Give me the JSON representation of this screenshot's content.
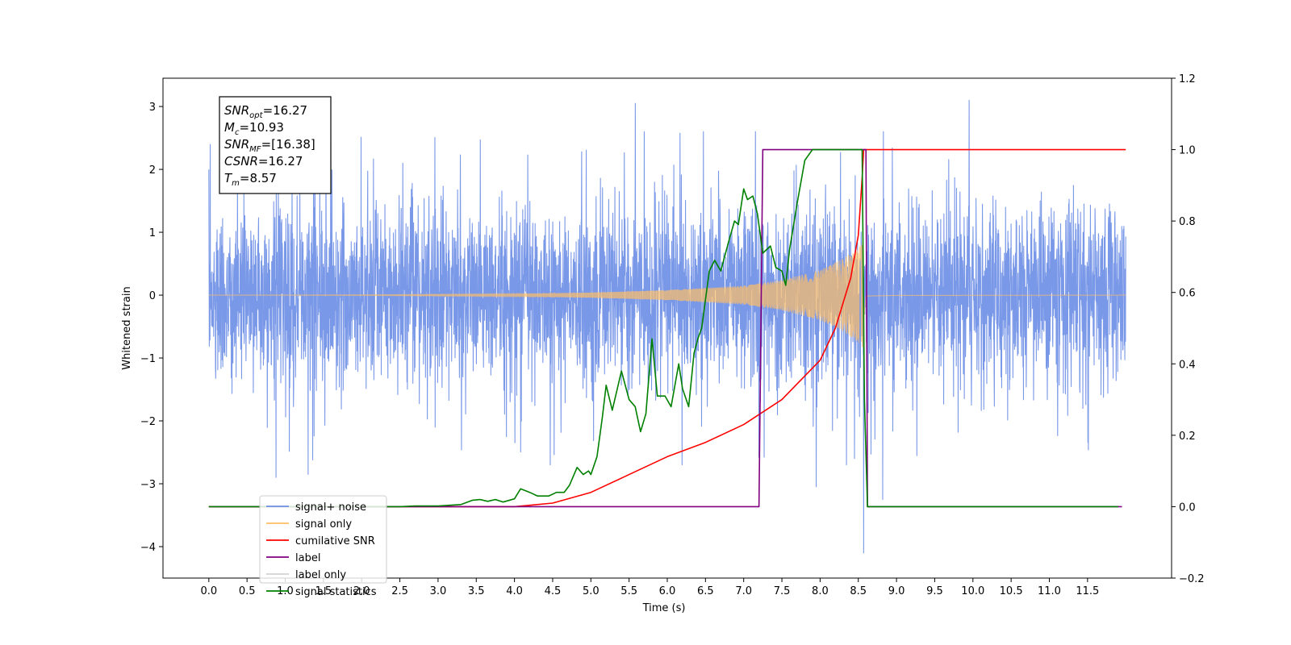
{
  "chart_data": {
    "type": "line",
    "xlabel": "Time (s)",
    "ylabel": "Whitened strain",
    "xlim": [
      -0.6,
      12.6
    ],
    "ylim_left": [
      -4.5,
      3.45
    ],
    "ylim_right": [
      -0.2,
      1.2
    ],
    "x_ticks": [
      0.0,
      0.5,
      1.0,
      1.5,
      2.0,
      2.5,
      3.0,
      3.5,
      4.0,
      4.5,
      5.0,
      5.5,
      6.0,
      6.5,
      7.0,
      7.5,
      8.0,
      8.5,
      9.0,
      9.5,
      10.0,
      10.5,
      11.0,
      11.5
    ],
    "x_tick_labels": [
      "0.0",
      "0.5",
      "1.0",
      "1.5",
      "2.0",
      "2.5",
      "3.0",
      "3.5",
      "4.0",
      "4.5",
      "5.0",
      "5.5",
      "6.0",
      "6.5",
      "7.0",
      "7.5",
      "8.0",
      "8.5",
      "9.0",
      "9.5",
      "10.0",
      "10.5",
      "11.0",
      "11.5"
    ],
    "y_left_ticks": [
      -4,
      -3,
      -2,
      -1,
      0,
      1,
      2,
      3
    ],
    "y_left_tick_labels": [
      "−4",
      "−3",
      "−2",
      "−1",
      "0",
      "1",
      "2",
      "3"
    ],
    "y_right_ticks": [
      -0.2,
      0.0,
      0.2,
      0.4,
      0.6,
      0.8,
      1.0,
      1.2
    ],
    "y_right_tick_labels": [
      "−0.2",
      "0.0",
      "0.2",
      "0.4",
      "0.6",
      "0.8",
      "1.0",
      "1.2"
    ],
    "grid": false,
    "legend_position": "lower-left",
    "noise": {
      "t_start": 0.0,
      "t_end": 12.0,
      "typical_amplitude": 1.25,
      "peak_max": 3.1,
      "peak_min": -4.1,
      "notable_spikes": [
        [
          1.37,
          2.9
        ],
        [
          5.58,
          3.05
        ],
        [
          9.95,
          3.1
        ],
        [
          0.88,
          -2.9
        ],
        [
          1.3,
          -2.85
        ],
        [
          8.57,
          -4.1
        ],
        [
          8.82,
          -3.25
        ],
        [
          7.95,
          -3.05
        ]
      ]
    },
    "signal_only": {
      "t_start": 0.0,
      "t_merger": 8.57,
      "t_end": 12.0,
      "envelope": [
        [
          0.0,
          0.0
        ],
        [
          2.0,
          0.005
        ],
        [
          4.0,
          0.02
        ],
        [
          5.0,
          0.04
        ],
        [
          6.0,
          0.08
        ],
        [
          7.0,
          0.15
        ],
        [
          7.5,
          0.24
        ],
        [
          8.0,
          0.4
        ],
        [
          8.3,
          0.58
        ],
        [
          8.5,
          0.75
        ],
        [
          8.57,
          0.85
        ],
        [
          8.6,
          0.03
        ],
        [
          9.0,
          0.01
        ],
        [
          12.0,
          0.0
        ]
      ]
    },
    "cumulative_snr": [
      [
        0.0,
        0.0
      ],
      [
        4.0,
        0.0
      ],
      [
        4.5,
        0.01
      ],
      [
        5.0,
        0.04
      ],
      [
        5.5,
        0.09
      ],
      [
        6.0,
        0.14
      ],
      [
        6.5,
        0.18
      ],
      [
        7.0,
        0.23
      ],
      [
        7.5,
        0.3
      ],
      [
        8.0,
        0.41
      ],
      [
        8.2,
        0.5
      ],
      [
        8.4,
        0.64
      ],
      [
        8.5,
        0.76
      ],
      [
        8.55,
        0.92
      ],
      [
        8.57,
        1.0
      ],
      [
        12.0,
        1.0
      ]
    ],
    "label": [
      [
        0.0,
        0.0
      ],
      [
        7.2,
        0.0
      ],
      [
        7.25,
        1.0
      ],
      [
        8.6,
        1.0
      ],
      [
        8.62,
        0.0
      ],
      [
        11.95,
        0.0
      ]
    ],
    "signal_statistics": [
      [
        0.0,
        0.0
      ],
      [
        2.5,
        0.0
      ],
      [
        2.7,
        0.002
      ],
      [
        3.0,
        0.002
      ],
      [
        3.3,
        0.006
      ],
      [
        3.45,
        0.018
      ],
      [
        3.55,
        0.02
      ],
      [
        3.65,
        0.015
      ],
      [
        3.75,
        0.02
      ],
      [
        3.85,
        0.013
      ],
      [
        4.0,
        0.022
      ],
      [
        4.08,
        0.05
      ],
      [
        4.2,
        0.04
      ],
      [
        4.3,
        0.03
      ],
      [
        4.45,
        0.03
      ],
      [
        4.55,
        0.04
      ],
      [
        4.65,
        0.04
      ],
      [
        4.72,
        0.06
      ],
      [
        4.82,
        0.11
      ],
      [
        4.9,
        0.09
      ],
      [
        4.97,
        0.1
      ],
      [
        5.0,
        0.09
      ],
      [
        5.08,
        0.14
      ],
      [
        5.15,
        0.25
      ],
      [
        5.2,
        0.34
      ],
      [
        5.28,
        0.27
      ],
      [
        5.4,
        0.38
      ],
      [
        5.5,
        0.3
      ],
      [
        5.58,
        0.28
      ],
      [
        5.65,
        0.21
      ],
      [
        5.72,
        0.26
      ],
      [
        5.8,
        0.47
      ],
      [
        5.87,
        0.31
      ],
      [
        5.97,
        0.31
      ],
      [
        6.05,
        0.28
      ],
      [
        6.15,
        0.4
      ],
      [
        6.2,
        0.33
      ],
      [
        6.28,
        0.28
      ],
      [
        6.35,
        0.43
      ],
      [
        6.4,
        0.47
      ],
      [
        6.45,
        0.5
      ],
      [
        6.55,
        0.66
      ],
      [
        6.62,
        0.69
      ],
      [
        6.7,
        0.66
      ],
      [
        6.8,
        0.74
      ],
      [
        6.88,
        0.8
      ],
      [
        6.93,
        0.79
      ],
      [
        7.0,
        0.89
      ],
      [
        7.05,
        0.86
      ],
      [
        7.12,
        0.87
      ],
      [
        7.18,
        0.82
      ],
      [
        7.25,
        0.71
      ],
      [
        7.35,
        0.73
      ],
      [
        7.42,
        0.67
      ],
      [
        7.5,
        0.66
      ],
      [
        7.55,
        0.62
      ],
      [
        7.6,
        0.72
      ],
      [
        7.7,
        0.85
      ],
      [
        7.8,
        0.97
      ],
      [
        7.9,
        1.0
      ],
      [
        8.45,
        1.0
      ],
      [
        8.55,
        1.0
      ],
      [
        8.58,
        0.3
      ],
      [
        8.62,
        0.0
      ],
      [
        11.9,
        0.0
      ]
    ],
    "series": [
      {
        "name": "signal+ noise",
        "color": "#6f8fe6"
      },
      {
        "name": "signal only",
        "color": "#ffbf66"
      },
      {
        "name": "cumilative SNR",
        "color": "#ff0000"
      },
      {
        "name": "label",
        "color": "#800080"
      },
      {
        "name": "label only",
        "color": "#d3d3d3"
      },
      {
        "name": "signal statistics",
        "color": "#008000"
      }
    ],
    "annotation": {
      "lines": [
        {
          "main": "SNR",
          "sub": "opt",
          "value": "=16.27"
        },
        {
          "main": "M",
          "sub": "c",
          "value": "=10.93"
        },
        {
          "main": "SNR",
          "sub": "MF",
          "value": "=[16.38]"
        },
        {
          "main": "CSNR",
          "sub": "",
          "value": "=16.27"
        },
        {
          "main": "T",
          "sub": "m",
          "value": "=8.57"
        }
      ]
    }
  }
}
